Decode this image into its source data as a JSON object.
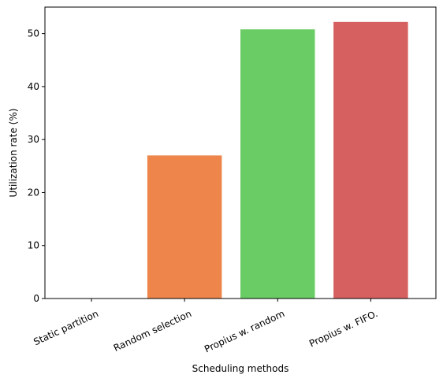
{
  "chart_data": {
    "type": "bar",
    "title": "",
    "xlabel": "Scheduling methods",
    "ylabel": "Utilization rate (%)",
    "categories": [
      "Static partition",
      "Random selection",
      "Propius w. random",
      "Propius w. FIFO."
    ],
    "values": [
      0.0,
      27.0,
      50.8,
      52.2
    ],
    "colors": [
      "#4c72b0",
      "#ee854a",
      "#6acc64",
      "#d65f5f"
    ],
    "yticks": [
      0,
      10,
      20,
      30,
      40,
      50
    ],
    "ylim": [
      0,
      55
    ],
    "grid": false,
    "legend": "none"
  }
}
